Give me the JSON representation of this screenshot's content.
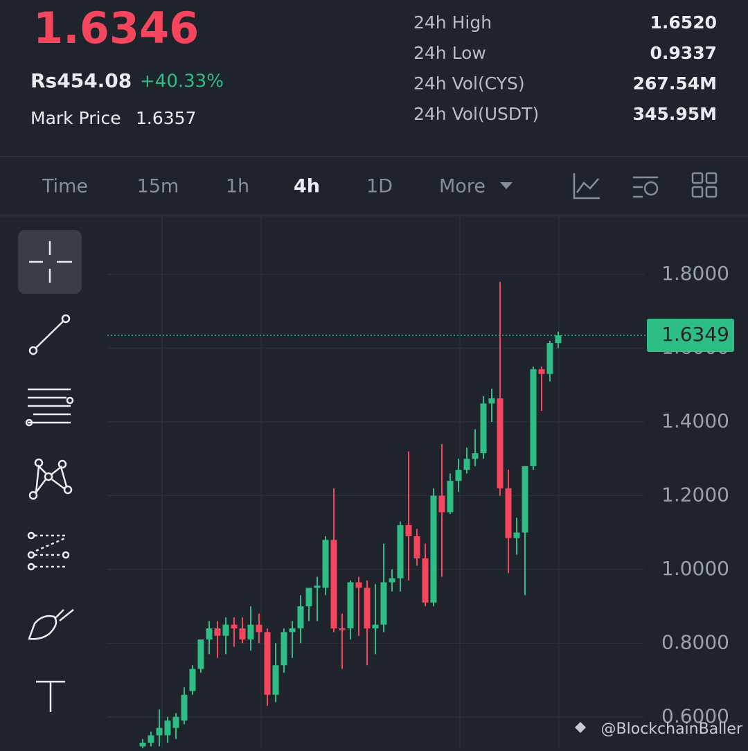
{
  "header": {
    "price": "1.6346",
    "fiat": "Rs454.08",
    "change": "+40.33%",
    "mark_label": "Mark Price",
    "mark_value": "1.6357",
    "stats": [
      {
        "label": "24h High",
        "value": "1.6520"
      },
      {
        "label": "24h Low",
        "value": "0.9337"
      },
      {
        "label": "24h Vol(CYS)",
        "value": "267.54M"
      },
      {
        "label": "24h Vol(USDT)",
        "value": "345.95M"
      }
    ]
  },
  "toolbar": {
    "intervals": [
      "Time",
      "15m",
      "1h",
      "4h",
      "1D"
    ],
    "active": "4h",
    "more": "More"
  },
  "watermark": "@BlockchainBaller",
  "chart_data": {
    "type": "candlestick",
    "open": [
      0.52,
      0.53,
      0.55,
      0.55,
      0.57,
      0.59,
      0.67,
      0.73,
      0.81,
      0.84,
      0.82,
      0.85,
      0.84,
      0.81,
      0.85,
      0.83,
      0.66,
      0.74,
      0.83,
      0.84,
      0.9,
      0.95,
      0.95,
      1.08,
      0.84,
      0.84,
      0.965,
      0.95,
      0.84,
      0.85,
      0.965,
      0.976,
      1.12,
      1.09,
      1.03,
      0.91,
      1.2,
      1.155,
      1.24,
      1.27,
      1.3,
      1.315,
      1.45,
      1.464,
      1.22,
      1.085,
      1.1,
      1.28,
      1.543,
      1.53,
      1.614
    ],
    "high": [
      0.54,
      0.56,
      0.62,
      0.6,
      0.61,
      0.68,
      0.74,
      0.81,
      0.86,
      0.86,
      0.87,
      0.87,
      0.87,
      0.9,
      0.88,
      0.84,
      0.8,
      0.84,
      0.86,
      0.93,
      0.94,
      0.98,
      1.09,
      1.22,
      0.88,
      0.97,
      0.98,
      0.97,
      0.96,
      1.07,
      1.0,
      1.13,
      1.32,
      1.11,
      1.07,
      1.22,
      1.34,
      1.26,
      1.3,
      1.33,
      1.38,
      1.47,
      1.49,
      1.78,
      1.27,
      1.14,
      1.28,
      1.55,
      1.55,
      1.62,
      1.645
    ],
    "low": [
      0.51,
      0.52,
      0.52,
      0.53,
      0.54,
      0.58,
      0.66,
      0.72,
      0.77,
      0.76,
      0.77,
      0.79,
      0.8,
      0.78,
      0.8,
      0.63,
      0.64,
      0.72,
      0.76,
      0.8,
      0.86,
      0.86,
      0.93,
      0.83,
      0.73,
      0.81,
      0.82,
      0.74,
      0.77,
      0.83,
      0.94,
      0.94,
      0.97,
      1.01,
      0.9,
      0.9,
      0.98,
      1.15,
      1.21,
      1.26,
      1.28,
      1.3,
      1.4,
      1.2,
      0.99,
      1.04,
      0.93,
      1.27,
      1.43,
      1.51,
      1.6
    ],
    "close": [
      0.53,
      0.55,
      0.57,
      0.59,
      0.6,
      0.66,
      0.73,
      0.81,
      0.84,
      0.82,
      0.85,
      0.84,
      0.81,
      0.85,
      0.83,
      0.66,
      0.74,
      0.83,
      0.84,
      0.9,
      0.95,
      0.956,
      1.08,
      0.84,
      0.835,
      0.965,
      0.95,
      0.84,
      0.85,
      0.965,
      0.976,
      1.12,
      1.09,
      1.03,
      0.91,
      1.2,
      1.155,
      1.24,
      1.27,
      1.3,
      1.315,
      1.45,
      1.464,
      1.22,
      1.085,
      1.1,
      1.28,
      1.543,
      1.53,
      1.614,
      1.6349
    ],
    "up_color": "#2ebd85",
    "down_color": "#f6465d",
    "last_price": 1.6349,
    "ylim": [
      0.515,
      1.958
    ],
    "yticks": [
      {
        "value": 0.6,
        "label": "0.6000"
      },
      {
        "value": 0.8,
        "label": "0.8000"
      },
      {
        "value": 1.0,
        "label": "1.0000"
      },
      {
        "value": 1.2,
        "label": "1.2000"
      },
      {
        "value": 1.4,
        "label": "1.4000"
      },
      {
        "value": 1.6,
        "label": "1.6000"
      },
      {
        "value": 1.8,
        "label": "1.8000"
      }
    ],
    "grid": true
  }
}
